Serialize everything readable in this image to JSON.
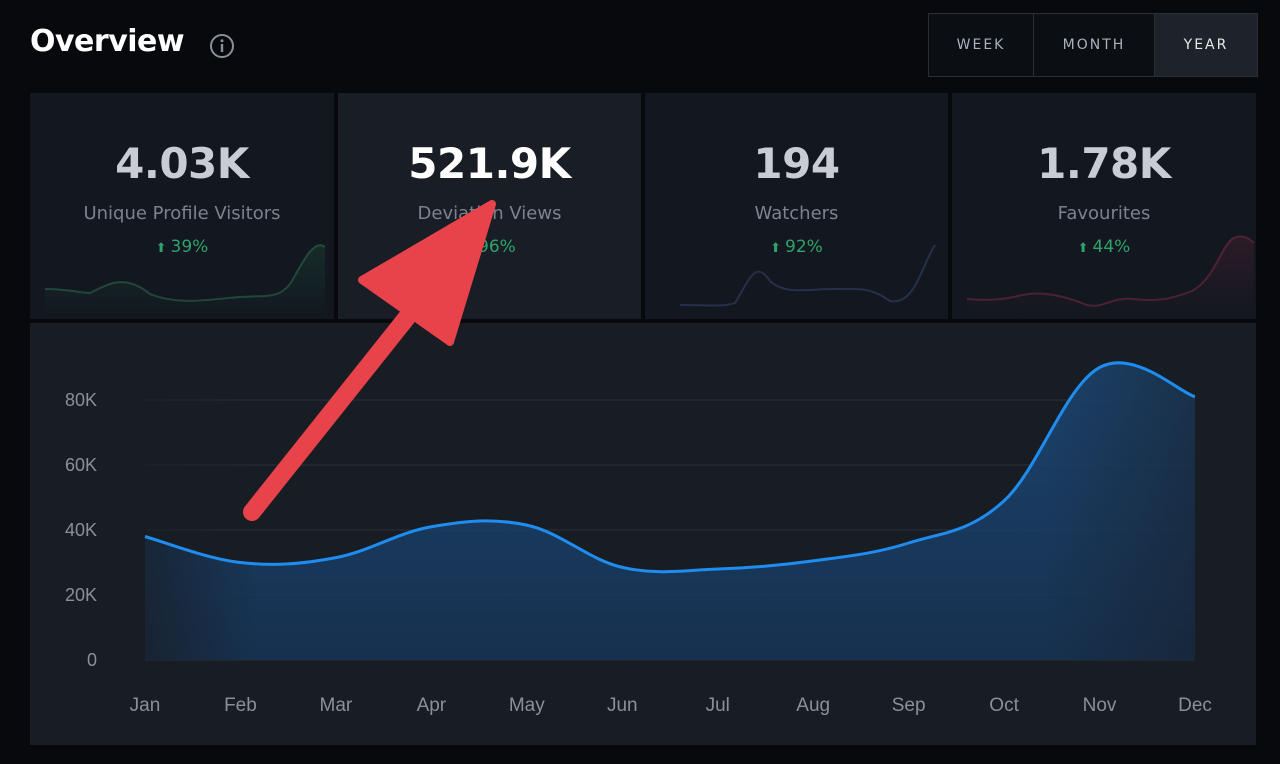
{
  "header": {
    "title": "Overview",
    "info_icon": "info-icon",
    "ranges": [
      {
        "label": "WEEK",
        "active": false
      },
      {
        "label": "MONTH",
        "active": false
      },
      {
        "label": "YEAR",
        "active": true
      }
    ]
  },
  "stats": [
    {
      "value": "4.03K",
      "label": "Unique Profile Visitors",
      "change": "39%",
      "color": "#2c8a55",
      "highlight": false
    },
    {
      "value": "521.9K",
      "label": "Deviation Views",
      "change": "96%",
      "color": "#1f8cf0",
      "highlight": true
    },
    {
      "value": "194",
      "label": "Watchers",
      "change": "92%",
      "color": "#3a4a7a",
      "highlight": false
    },
    {
      "value": "1.78K",
      "label": "Favourites",
      "change": "44%",
      "color": "#a0304a",
      "highlight": false
    }
  ],
  "colors": {
    "accent": "#1f8cf0",
    "positive": "#2fa36b",
    "annotation": "#e8434a"
  },
  "chart_data": {
    "type": "area",
    "categories": [
      "Jan",
      "Feb",
      "Mar",
      "Apr",
      "May",
      "Jun",
      "Jul",
      "Aug",
      "Sep",
      "Oct",
      "Nov",
      "Dec"
    ],
    "values": [
      38000,
      30000,
      31500,
      41000,
      41500,
      28500,
      28000,
      30500,
      36000,
      49000,
      90000,
      81000
    ],
    "yticks": [
      "0",
      "20K",
      "40K",
      "60K",
      "80K"
    ],
    "ytick_values": [
      0,
      20000,
      40000,
      60000,
      80000
    ],
    "ylim": [
      0,
      100000
    ],
    "grid": true,
    "title": "",
    "xlabel": "",
    "ylabel": ""
  }
}
